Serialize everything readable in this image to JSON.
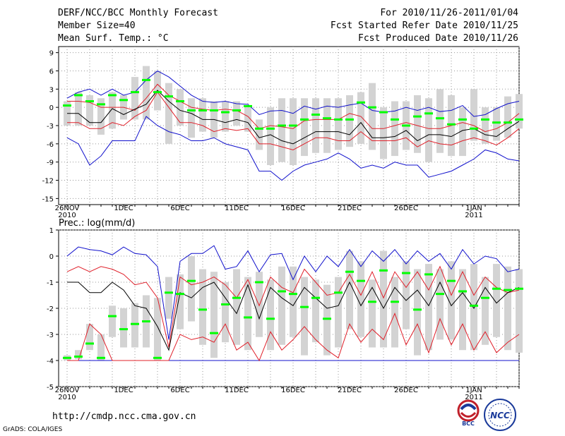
{
  "header": {
    "title": "DERF/NCC/BCC Monthly Forecast",
    "member_size": "Member Size=40",
    "variable": "Mean Surf. Temp.: °C",
    "forecast_period": "For 2010/11/26-2011/01/04",
    "start_date": "Fcst Started Refer Date 2010/11/25",
    "produced_date": "Fcst Produced Date 2010/11/26"
  },
  "footer": {
    "url": "http://cmdp.ncc.cma.gov.cn",
    "credit": "GrADS: COLA/IGES",
    "logo1_text": "BCC",
    "logo2_text": "NCC"
  },
  "colors": {
    "box": "#d3d3d3",
    "median": "#00ff00",
    "mean": "#000000",
    "spread": "#e0202a",
    "extreme": "#1010cc",
    "grid": "#999999"
  },
  "chart_data": [
    {
      "type": "line",
      "title": "Mean Surf. Temp.: °C",
      "ylim": [
        -16,
        10
      ],
      "yticks": [
        -15,
        -12,
        -9,
        -6,
        -3,
        0,
        3,
        6,
        9
      ],
      "x_tick_labels": [
        {
          "day": 0,
          "label": "26NOV",
          "sub": "2010"
        },
        {
          "day": 5,
          "label": "1DEC",
          "sub": ""
        },
        {
          "day": 10,
          "label": "6DEC",
          "sub": ""
        },
        {
          "day": 15,
          "label": "11DEC",
          "sub": ""
        },
        {
          "day": 20,
          "label": "16DEC",
          "sub": ""
        },
        {
          "day": 25,
          "label": "21DEC",
          "sub": ""
        },
        {
          "day": 30,
          "label": "26DEC",
          "sub": ""
        },
        {
          "day": 36,
          "label": "1JAN",
          "sub": "2011"
        }
      ],
      "series": [
        {
          "name": "max",
          "values": [
            1.5,
            2.5,
            3.0,
            2.0,
            3.0,
            2.0,
            2.5,
            4.5,
            6.0,
            5.0,
            3.5,
            2.0,
            1.0,
            0.8,
            1.0,
            0.6,
            0.5,
            -1.2,
            -0.6,
            -0.5,
            -1.0,
            0.2,
            -0.3,
            0.2,
            0.0,
            0.4,
            0.7,
            -0.5,
            -0.8,
            -0.6,
            0.0,
            -0.5,
            0.0,
            -0.7,
            -0.5,
            0.3,
            -1.5,
            -1.2,
            -0.2,
            0.6,
            1.0
          ]
        },
        {
          "name": "upper",
          "values": [
            1.0,
            1.0,
            0.8,
            0.0,
            0.0,
            0.0,
            -0.5,
            1.5,
            3.8,
            2.0,
            1.0,
            0.0,
            -0.3,
            -0.5,
            -0.3,
            -0.5,
            -1.5,
            -3.5,
            -3.0,
            -3.2,
            -3.5,
            -2.2,
            -2.0,
            -2.0,
            -2.0,
            -1.0,
            -1.5,
            -3.5,
            -3.5,
            -3.0,
            -2.5,
            -3.0,
            -3.5,
            -3.5,
            -3.0,
            -2.5,
            -3.0,
            -4.0,
            -3.5,
            -2.5,
            -1.0
          ]
        },
        {
          "name": "mean",
          "values": [
            -1.0,
            -1.0,
            -2.5,
            -2.5,
            -0.2,
            -1.2,
            -0.3,
            0.5,
            2.8,
            1.0,
            -0.5,
            -1.0,
            -2.0,
            -2.0,
            -2.5,
            -2.0,
            -2.5,
            -5.0,
            -4.5,
            -5.5,
            -6.0,
            -5.0,
            -4.0,
            -4.0,
            -4.0,
            -4.5,
            -2.5,
            -5.0,
            -5.0,
            -4.8,
            -3.8,
            -5.5,
            -4.5,
            -4.5,
            -4.8,
            -3.8,
            -3.5,
            -4.5,
            -4.8,
            -3.5,
            -2.3
          ]
        },
        {
          "name": "lower",
          "values": [
            -2.5,
            -2.5,
            -3.5,
            -3.5,
            -2.5,
            -3.0,
            -1.5,
            -0.5,
            2.5,
            0.0,
            -2.5,
            -2.5,
            -3.0,
            -4.0,
            -3.5,
            -3.8,
            -3.5,
            -6.0,
            -6.0,
            -6.5,
            -7.0,
            -6.0,
            -5.0,
            -5.0,
            -5.5,
            -5.5,
            -4.0,
            -5.5,
            -5.5,
            -5.5,
            -5.0,
            -6.5,
            -5.5,
            -6.0,
            -6.2,
            -5.5,
            -5.0,
            -5.5,
            -6.2,
            -5.0,
            -3.5
          ]
        },
        {
          "name": "min",
          "values": [
            -5.0,
            -6.0,
            -9.5,
            -8.0,
            -5.5,
            -5.5,
            -5.5,
            -1.5,
            -3.0,
            -4.0,
            -4.5,
            -5.5,
            -5.5,
            -5.0,
            -6.0,
            -6.5,
            -7.0,
            -10.5,
            -10.5,
            -12.0,
            -10.5,
            -9.5,
            -9.0,
            -8.5,
            -7.5,
            -8.5,
            -10.0,
            -9.5,
            -10.0,
            -9.0,
            -9.5,
            -9.5,
            -11.5,
            -11.0,
            -10.5,
            -9.5,
            -8.5,
            -7.0,
            -7.5,
            -8.5,
            -8.8
          ]
        },
        {
          "name": "median",
          "values": [
            0.3,
            2.0,
            1.0,
            0.5,
            2.0,
            1.2,
            2.5,
            4.5,
            2.5,
            1.8,
            1.0,
            -0.5,
            -0.5,
            -0.5,
            -0.8,
            -0.5,
            0.2,
            -3.5,
            -3.5,
            -3.0,
            -3.0,
            -2.0,
            -1.2,
            -1.8,
            -2.0,
            -2.0,
            0.8,
            0.0,
            -0.8,
            -2.0,
            -3.0,
            -1.5,
            -1.0,
            -1.8,
            -2.8,
            -2.0,
            -3.5,
            -2.0,
            -2.5,
            -2.5,
            -2.0
          ]
        },
        {
          "name": "box_high",
          "values": [
            1.0,
            2.5,
            2.0,
            1.5,
            2.5,
            2.0,
            5.0,
            6.8,
            6.0,
            4.0,
            3.0,
            1.5,
            1.5,
            1.0,
            1.0,
            1.0,
            0.0,
            -2.0,
            0.0,
            1.5,
            1.5,
            1.5,
            1.5,
            1.5,
            1.5,
            2.0,
            2.5,
            4.0,
            0.0,
            1.0,
            1.0,
            2.0,
            1.5,
            3.0,
            2.0,
            0.0,
            3.0,
            0.0,
            0.0,
            1.8,
            2.2
          ]
        },
        {
          "name": "box_low",
          "values": [
            -3.0,
            -3.0,
            -3.0,
            -4.5,
            -3.5,
            -2.0,
            -2.0,
            -2.0,
            -0.5,
            -6.0,
            -3.0,
            -5.0,
            -4.0,
            -5.0,
            -4.0,
            -3.0,
            -4.0,
            -7.0,
            -9.5,
            -9.0,
            -9.5,
            -8.0,
            -7.5,
            -7.5,
            -7.0,
            -6.5,
            -6.0,
            -7.0,
            -8.5,
            -8.0,
            -7.0,
            -7.5,
            -9.0,
            -7.5,
            -8.0,
            -8.0,
            -5.5,
            -6.0,
            -5.5,
            -5.0,
            -3.5
          ]
        }
      ]
    },
    {
      "type": "line",
      "title": "Prec.: log(mm/d)",
      "ylim": [
        -5,
        1
      ],
      "yticks": [
        -5,
        -4,
        -3,
        -2,
        -1,
        0,
        1
      ],
      "x_tick_labels": [
        {
          "day": 0,
          "label": "26NOV",
          "sub": "2010"
        },
        {
          "day": 5,
          "label": "1DEC",
          "sub": ""
        },
        {
          "day": 10,
          "label": "6DEC",
          "sub": ""
        },
        {
          "day": 15,
          "label": "11DEC",
          "sub": ""
        },
        {
          "day": 20,
          "label": "16DEC",
          "sub": ""
        },
        {
          "day": 25,
          "label": "21DEC",
          "sub": ""
        },
        {
          "day": 30,
          "label": "26DEC",
          "sub": ""
        },
        {
          "day": 36,
          "label": "1JAN",
          "sub": "2011"
        }
      ],
      "series": [
        {
          "name": "max",
          "values": [
            0.0,
            0.35,
            0.25,
            0.2,
            0.05,
            0.35,
            0.1,
            0.05,
            -0.4,
            -3.2,
            -0.2,
            0.1,
            0.1,
            0.4,
            -0.5,
            -0.4,
            0.2,
            -0.6,
            0.05,
            0.1,
            -0.9,
            0.0,
            -0.6,
            0.0,
            -0.4,
            0.25,
            -0.4,
            0.2,
            -0.2,
            0.25,
            -0.3,
            0.2,
            -0.2,
            0.1,
            -0.5,
            0.25,
            -0.3,
            0.0,
            -0.1,
            -0.6,
            -0.5
          ]
        },
        {
          "name": "upper",
          "values": [
            -0.6,
            -0.4,
            -0.6,
            -0.4,
            -0.5,
            -0.7,
            -1.1,
            -1.0,
            -1.6,
            -3.5,
            -0.8,
            -1.1,
            -1.0,
            -0.8,
            -1.1,
            -1.6,
            -0.9,
            -1.9,
            -0.8,
            -1.2,
            -1.4,
            -0.5,
            -1.0,
            -1.5,
            -1.4,
            -0.7,
            -1.5,
            -0.6,
            -1.6,
            -0.6,
            -1.2,
            -0.6,
            -1.3,
            -0.4,
            -1.5,
            -0.6,
            -1.5,
            -0.8,
            -1.2,
            -1.4,
            -1.3
          ]
        },
        {
          "name": "mean",
          "values": [
            -1.0,
            -1.0,
            -1.4,
            -1.4,
            -1.0,
            -1.3,
            -1.9,
            -2.0,
            -2.7,
            -3.6,
            -1.4,
            -1.6,
            -1.2,
            -1.0,
            -1.6,
            -2.2,
            -1.1,
            -2.4,
            -1.2,
            -1.6,
            -1.9,
            -1.2,
            -1.6,
            -2.0,
            -1.9,
            -1.0,
            -1.9,
            -1.2,
            -2.0,
            -1.2,
            -1.7,
            -1.3,
            -1.9,
            -1.0,
            -1.9,
            -1.4,
            -2.0,
            -1.2,
            -1.8,
            -1.4,
            -1.2
          ]
        },
        {
          "name": "lower",
          "values": [
            -4.0,
            -4.0,
            -2.6,
            -3.0,
            -4.0,
            -4.0,
            -4.0,
            -4.0,
            -4.0,
            -4.0,
            -3.0,
            -3.2,
            -3.1,
            -3.3,
            -2.6,
            -3.6,
            -3.3,
            -4.0,
            -2.9,
            -3.6,
            -3.2,
            -2.7,
            -3.2,
            -3.6,
            -3.9,
            -2.6,
            -3.3,
            -2.8,
            -3.2,
            -2.2,
            -3.4,
            -2.6,
            -3.7,
            -2.4,
            -3.4,
            -2.6,
            -3.6,
            -2.9,
            -3.7,
            -3.3,
            -3.0
          ]
        },
        {
          "name": "min",
          "values": [
            -4.0,
            -4.0,
            -4.0,
            -4.0,
            -4.0,
            -4.0,
            -4.0,
            -4.0,
            -4.0,
            -4.0,
            -4.0,
            -4.0,
            -4.0,
            -4.0,
            -4.0,
            -4.0,
            -4.0,
            -4.0,
            -4.0,
            -4.0,
            -4.0,
            -4.0,
            -4.0,
            -4.0,
            -4.0,
            -4.0,
            -4.0,
            -4.0,
            -4.0,
            -4.0,
            -4.0,
            -4.0,
            -4.0,
            -4.0,
            -4.0,
            -4.0,
            -4.0,
            -4.0,
            -4.0,
            -4.0,
            -4.0
          ]
        },
        {
          "name": "median",
          "values": [
            -3.9,
            -3.85,
            -3.35,
            -3.9,
            -2.3,
            -2.8,
            -2.6,
            -2.5,
            -3.9,
            -1.4,
            -1.45,
            -0.95,
            -2.05,
            -2.95,
            -1.85,
            -1.6,
            -2.35,
            -1.0,
            -2.4,
            -1.35,
            -1.45,
            -1.95,
            -1.6,
            -2.4,
            -1.4,
            -0.6,
            -0.95,
            -1.75,
            -0.55,
            -1.75,
            -0.65,
            -2.05,
            -0.7,
            -1.45,
            -0.95,
            -1.35,
            -1.9,
            -1.6,
            -1.25,
            -1.3,
            -1.25
          ]
        },
        {
          "name": "box_high",
          "values": [
            -3.8,
            -3.6,
            -2.6,
            -3.0,
            -1.9,
            -2.0,
            -1.8,
            -1.5,
            -1.6,
            -0.8,
            -0.7,
            0.0,
            -0.5,
            -0.6,
            -1.0,
            -0.5,
            -0.8,
            -0.6,
            -0.9,
            -0.4,
            -0.4,
            -0.8,
            -0.9,
            -1.1,
            -0.8,
            0.2,
            -0.2,
            -0.9,
            0.2,
            -0.8,
            -0.2,
            -0.5,
            -0.3,
            -0.5,
            -0.2,
            -0.5,
            -0.3,
            -0.8,
            -0.3,
            -0.4,
            -0.5
          ]
        },
        {
          "name": "box_low",
          "values": [
            -4.0,
            -3.95,
            -3.6,
            -4.0,
            -3.1,
            -3.5,
            -3.5,
            -3.5,
            -4.0,
            -2.4,
            -2.8,
            -2.5,
            -3.4,
            -3.9,
            -3.3,
            -3.4,
            -3.6,
            -3.1,
            -3.6,
            -3.4,
            -3.1,
            -3.8,
            -3.3,
            -3.8,
            -3.5,
            -2.8,
            -3.1,
            -3.5,
            -3.5,
            -3.5,
            -2.8,
            -3.8,
            -3.6,
            -3.2,
            -3.2,
            -3.6,
            -3.6,
            -3.4,
            -3.1,
            -3.6,
            -3.7
          ]
        }
      ]
    }
  ]
}
